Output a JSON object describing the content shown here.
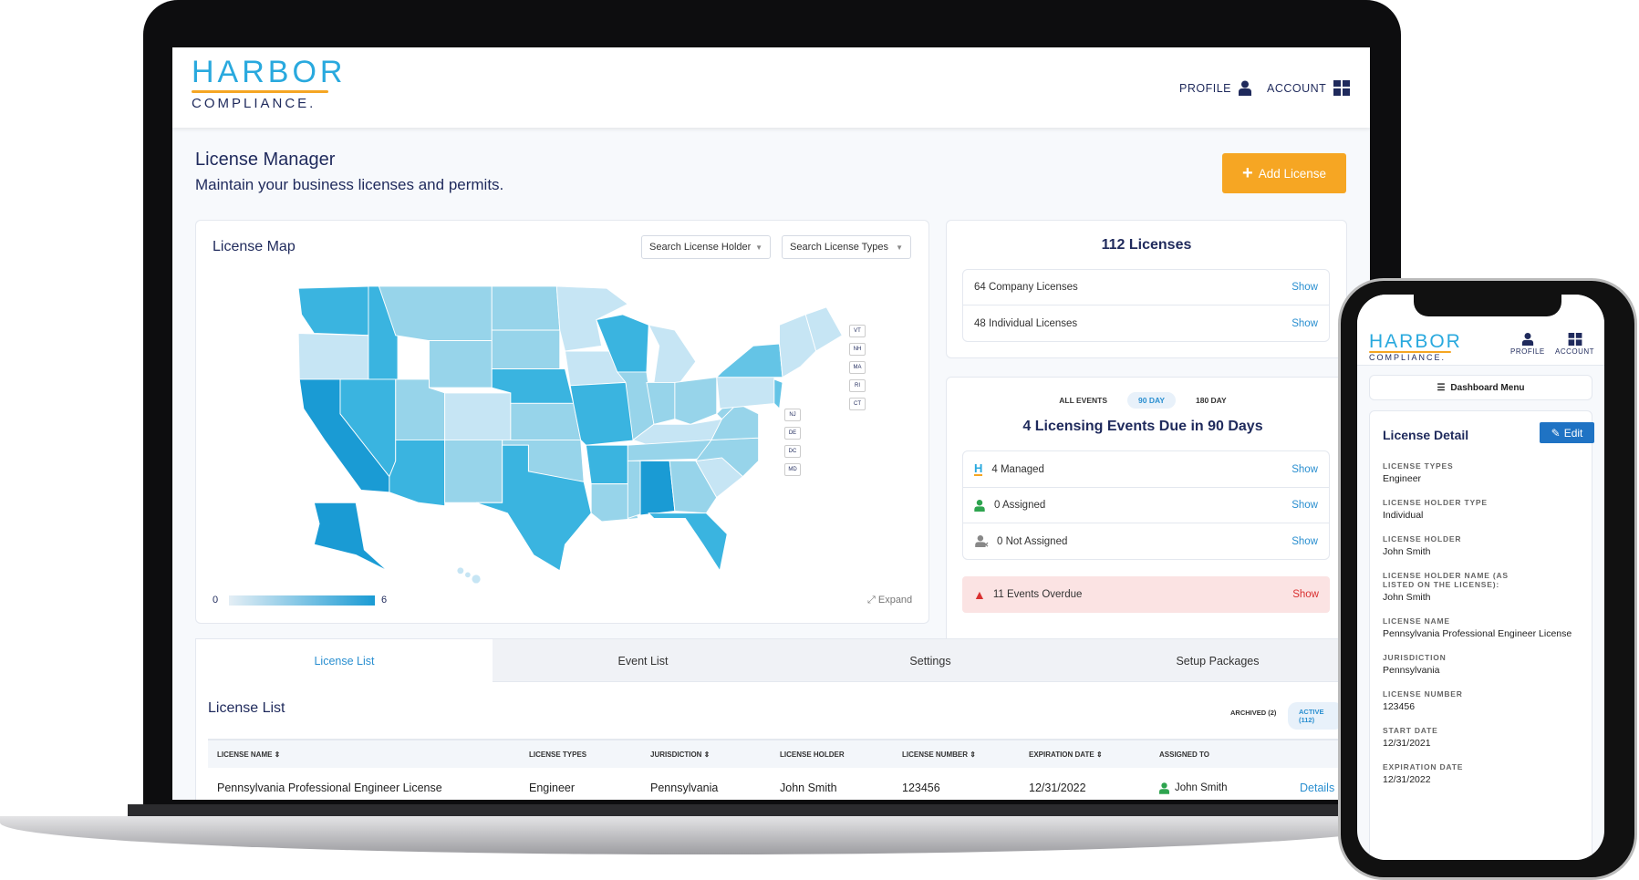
{
  "brand": {
    "name_top": "HARBOR",
    "name_bottom": "COMPLIANCE."
  },
  "header": {
    "profile": "PROFILE",
    "account": "ACCOUNT"
  },
  "page": {
    "title": "License Manager",
    "subtitle": "Maintain your business licenses and permits.",
    "add_button": "Add License"
  },
  "map": {
    "title": "License Map",
    "holder_placeholder": "Search License Holder",
    "types_placeholder": "Search License Types",
    "legend_min": "0",
    "legend_max": "6",
    "expand": "Expand",
    "small_states": [
      "VT",
      "NH",
      "MA",
      "RI",
      "CT"
    ],
    "mid_states": [
      "NJ",
      "DE",
      "DC",
      "MD"
    ],
    "colors": {
      "l1": "#c6e5f4",
      "l2": "#97d4ea",
      "l3": "#64c4e6",
      "l4": "#3ab4e0",
      "l5": "#1a9bd4"
    }
  },
  "licenses": {
    "title": "112 Licenses",
    "rows": [
      {
        "label": "64 Company Licenses",
        "action": "Show"
      },
      {
        "label": "48 Individual Licenses",
        "action": "Show"
      }
    ]
  },
  "events": {
    "filters": [
      "ALL EVENTS",
      "90 DAY",
      "180 DAY"
    ],
    "title": "4 Licensing Events Due in 90 Days",
    "rows": [
      {
        "label": "4 Managed",
        "action": "Show"
      },
      {
        "label": "0 Assigned",
        "action": "Show"
      },
      {
        "label": "0 Not Assigned",
        "action": "Show"
      }
    ],
    "overdue": {
      "label": "11 Events Overdue",
      "action": "Show"
    }
  },
  "tabs": [
    "License List",
    "Event List",
    "Settings",
    "Setup Packages"
  ],
  "list": {
    "title": "License List",
    "archived": "ARCHIVED (2)",
    "active": "ACTIVE (112)",
    "columns": [
      "LICENSE NAME",
      "LICENSE TYPES",
      "JURISDICTION",
      "LICENSE HOLDER",
      "LICENSE NUMBER",
      "EXPIRATION DATE",
      "ASSIGNED TO"
    ],
    "rows": [
      {
        "name": "Pennsylvania Professional Engineer License",
        "types": "Engineer",
        "jurisdiction": "Pennsylvania",
        "holder": "John Smith",
        "number": "123456",
        "expiration": "12/31/2022",
        "assigned": "John Smith",
        "action": "Details"
      }
    ]
  },
  "phone": {
    "profile": "PROFILE",
    "account": "ACCOUNT",
    "menu": "Dashboard Menu",
    "detail_title": "License Detail",
    "edit": "Edit",
    "fields": [
      {
        "label": "LICENSE TYPES",
        "value": "Engineer"
      },
      {
        "label": "LICENSE HOLDER TYPE",
        "value": "Individual"
      },
      {
        "label": "LICENSE HOLDER",
        "value": "John Smith"
      },
      {
        "label": "LICENSE HOLDER NAME (AS LISTED ON THE LICENSE):",
        "value": "John Smith"
      },
      {
        "label": "LICENSE NAME",
        "value": "Pennsylvania Professional Engineer License"
      },
      {
        "label": "JURISDICTION",
        "value": "Pennsylvania"
      },
      {
        "label": "LICENSE NUMBER",
        "value": "123456"
      },
      {
        "label": "START DATE",
        "value": "12/31/2021"
      },
      {
        "label": "EXPIRATION DATE",
        "value": "12/31/2022"
      }
    ]
  }
}
